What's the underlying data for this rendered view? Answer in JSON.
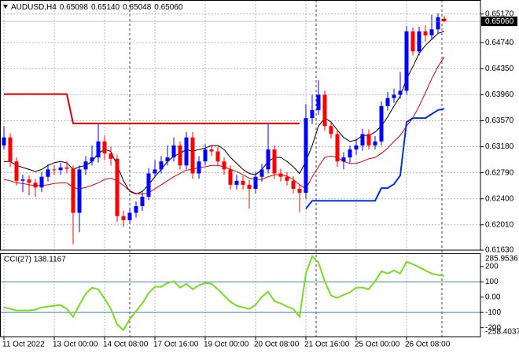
{
  "chart_data": [
    {
      "type": "candlestick",
      "title": "AUDUSD,H4",
      "header_values": [
        "0.65098",
        "0.65140",
        "0.65048",
        "0.65060"
      ],
      "categories": [
        "11 Oct 2022",
        null,
        null,
        null,
        null,
        null,
        null,
        null,
        "13 Oct 00:00",
        null,
        null,
        null,
        null,
        null,
        null,
        null,
        "14 Oct 08:00",
        null,
        null,
        null,
        null,
        null,
        null,
        null,
        "17 Oct 16:00",
        null,
        null,
        null,
        null,
        null,
        null,
        null,
        "19 Oct 00:00",
        null,
        null,
        null,
        null,
        null,
        null,
        null,
        "20 Oct 08:00",
        null,
        null,
        null,
        null,
        null,
        null,
        null,
        "21 Oct 16:00",
        null,
        null,
        null,
        null,
        null,
        null,
        null,
        "25 Oct 00:00",
        null,
        null,
        null,
        null,
        null,
        null,
        null,
        "26 Oct 08:00",
        null,
        null,
        null,
        null,
        null,
        null
      ],
      "open": [
        0.632,
        0.6332,
        0.6296,
        0.6267,
        0.6269,
        0.6264,
        0.6257,
        0.6273,
        0.6284,
        0.6283,
        0.6287,
        0.6285,
        0.6219,
        0.6284,
        0.6296,
        0.6302,
        0.6326,
        0.6308,
        0.63,
        0.6214,
        0.6208,
        0.6219,
        0.6229,
        0.6243,
        0.6278,
        0.6284,
        0.6296,
        0.6302,
        0.632,
        0.629,
        0.6332,
        0.6278,
        0.6296,
        0.6314,
        0.6311,
        0.6296,
        0.6284,
        0.6261,
        0.6267,
        0.6261,
        0.6255,
        0.6273,
        0.6284,
        0.6314,
        0.6278,
        0.6273,
        0.6267,
        0.6255,
        0.6249,
        0.6361,
        0.6373,
        0.6396,
        0.6349,
        0.6337,
        0.6296,
        0.6302,
        0.6314,
        0.632,
        0.6337,
        0.632,
        0.6326,
        0.6379,
        0.6391,
        0.6396,
        0.6402,
        0.6491,
        0.6461,
        0.6491,
        0.6485,
        0.6494,
        0.651
      ],
      "high": [
        0.6349,
        0.6338,
        0.6302,
        0.6276,
        0.6275,
        0.627,
        0.628,
        0.6292,
        0.629,
        0.6294,
        0.6296,
        0.629,
        0.629,
        0.6304,
        0.632,
        0.6352,
        0.6335,
        0.6318,
        0.6306,
        0.6222,
        0.6226,
        0.6236,
        0.625,
        0.6286,
        0.6298,
        0.6304,
        0.632,
        0.6332,
        0.6326,
        0.634,
        0.634,
        0.6304,
        0.6322,
        0.632,
        0.6318,
        0.6302,
        0.629,
        0.6276,
        0.6274,
        0.6268,
        0.628,
        0.6292,
        0.6352,
        0.632,
        0.6285,
        0.628,
        0.6274,
        0.6262,
        0.6382,
        0.6396,
        0.6418,
        0.6402,
        0.6356,
        0.6344,
        0.631,
        0.632,
        0.633,
        0.6345,
        0.6344,
        0.6334,
        0.6386,
        0.64,
        0.6405,
        0.643,
        0.6499,
        0.6497,
        0.6498,
        0.65,
        0.6516,
        0.6518,
        0.6514
      ],
      "low": [
        0.6314,
        0.6288,
        0.626,
        0.625,
        0.6245,
        0.6243,
        0.625,
        0.6266,
        0.6276,
        0.6276,
        0.6278,
        0.6172,
        0.619,
        0.6276,
        0.629,
        0.6294,
        0.6298,
        0.629,
        0.6205,
        0.6198,
        0.6202,
        0.6212,
        0.6222,
        0.6238,
        0.6272,
        0.6278,
        0.629,
        0.6296,
        0.6284,
        0.6284,
        0.627,
        0.627,
        0.629,
        0.6304,
        0.629,
        0.6276,
        0.6254,
        0.6254,
        0.6254,
        0.6225,
        0.6248,
        0.6266,
        0.6278,
        0.627,
        0.6266,
        0.626,
        0.6248,
        0.622,
        0.624,
        0.6352,
        0.6366,
        0.6342,
        0.633,
        0.6288,
        0.6284,
        0.6294,
        0.6306,
        0.6312,
        0.6314,
        0.6314,
        0.632,
        0.6372,
        0.6384,
        0.639,
        0.6396,
        0.6455,
        0.6455,
        0.6476,
        0.6478,
        0.6488,
        0.6505
      ],
      "close": [
        0.6332,
        0.6296,
        0.6267,
        0.6269,
        0.6264,
        0.6257,
        0.6273,
        0.6284,
        0.6283,
        0.6287,
        0.6285,
        0.6219,
        0.6284,
        0.6296,
        0.6302,
        0.6326,
        0.6308,
        0.63,
        0.6214,
        0.6208,
        0.6219,
        0.6229,
        0.6243,
        0.6278,
        0.6284,
        0.6296,
        0.6302,
        0.632,
        0.629,
        0.6332,
        0.6278,
        0.6296,
        0.6314,
        0.6311,
        0.6296,
        0.6284,
        0.6261,
        0.6267,
        0.6261,
        0.6255,
        0.6273,
        0.6284,
        0.6314,
        0.6278,
        0.6273,
        0.6267,
        0.6255,
        0.6249,
        0.6361,
        0.6373,
        0.6396,
        0.6349,
        0.6337,
        0.6296,
        0.6302,
        0.6314,
        0.632,
        0.6337,
        0.632,
        0.6326,
        0.6379,
        0.6391,
        0.6396,
        0.6402,
        0.6491,
        0.6461,
        0.6491,
        0.6485,
        0.6494,
        0.6512,
        0.6506
      ],
      "up_color": "#0000ff",
      "down_color": "#ff0000",
      "lines": [
        {
          "color": "#000000",
          "values": [
            0.6296,
            0.6296,
            0.629,
            0.6287,
            0.6284,
            0.6281,
            0.6284,
            0.629,
            0.6294,
            0.6296,
            0.6294,
            0.6284,
            0.6288,
            0.629,
            0.6296,
            0.6308,
            0.6314,
            0.6311,
            0.629,
            0.6267,
            0.6251,
            0.6247,
            0.6251,
            0.6261,
            0.6273,
            0.6284,
            0.6296,
            0.6304,
            0.6308,
            0.6314,
            0.6311,
            0.6314,
            0.6316,
            0.632,
            0.632,
            0.6314,
            0.6302,
            0.6293,
            0.6284,
            0.6278,
            0.6276,
            0.6284,
            0.6296,
            0.6302,
            0.6302,
            0.6296,
            0.6288,
            0.6278,
            0.6296,
            0.632,
            0.6349,
            0.6361,
            0.6355,
            0.6343,
            0.6332,
            0.6326,
            0.6328,
            0.6335,
            0.6335,
            0.634,
            0.6349,
            0.6363,
            0.6379,
            0.6394,
            0.642,
            0.6438,
            0.6458,
            0.647,
            0.6479,
            0.6488,
            0.6491
          ]
        },
        {
          "color": "#dd0000",
          "values": [
            0.6269,
            0.6267,
            0.6264,
            0.6263,
            0.6261,
            0.626,
            0.626,
            0.6261,
            0.6263,
            0.6264,
            0.6264,
            0.6257,
            0.6255,
            0.6257,
            0.626,
            0.6264,
            0.6269,
            0.6271,
            0.6267,
            0.626,
            0.6252,
            0.6248,
            0.6247,
            0.6249,
            0.6255,
            0.6261,
            0.6267,
            0.6273,
            0.6278,
            0.6283,
            0.6284,
            0.6287,
            0.6288,
            0.629,
            0.629,
            0.6288,
            0.6284,
            0.6281,
            0.6276,
            0.6271,
            0.6269,
            0.6269,
            0.6273,
            0.6276,
            0.6276,
            0.6274,
            0.6269,
            0.6261,
            0.6255,
            0.6273,
            0.6288,
            0.6302,
            0.6304,
            0.6302,
            0.6296,
            0.6293,
            0.6293,
            0.6296,
            0.63,
            0.6302,
            0.6308,
            0.6316,
            0.6326,
            0.6335,
            0.6349,
            0.6361,
            0.6379,
            0.6399,
            0.642,
            0.6438,
            0.6453
          ]
        },
        {
          "color": "#dd0000",
          "values": [
            0.6397,
            0.6397,
            0.6397,
            0.6397,
            0.6397,
            0.6397,
            0.6397,
            0.6397,
            0.6397,
            0.6397,
            0.6397,
            0.6353,
            0.6353,
            0.6353,
            0.6353,
            0.6353,
            0.6353,
            0.6353,
            0.6353,
            0.6353,
            0.6353,
            0.6353,
            0.6353,
            0.6353,
            0.6353,
            0.6353,
            0.6353,
            0.6353,
            0.6353,
            0.6353,
            0.6353,
            0.6353,
            0.6353,
            0.6353,
            0.6353,
            0.6353,
            0.6353,
            0.6353,
            0.6353,
            0.6353,
            0.6353,
            0.6353,
            0.6353,
            0.6353,
            0.6353,
            0.6353,
            0.6353,
            0.6353,
            null,
            null,
            null,
            null,
            null,
            null,
            null,
            null,
            null,
            null,
            null,
            null,
            null,
            null,
            null,
            null,
            null,
            null,
            null,
            null,
            null,
            null,
            null
          ]
        },
        {
          "color": "#0030e0",
          "values": [
            null,
            null,
            null,
            null,
            null,
            null,
            null,
            null,
            null,
            null,
            null,
            null,
            null,
            null,
            null,
            null,
            null,
            null,
            null,
            null,
            null,
            null,
            null,
            null,
            null,
            null,
            null,
            null,
            null,
            null,
            null,
            null,
            null,
            null,
            null,
            null,
            null,
            null,
            null,
            null,
            null,
            null,
            null,
            null,
            null,
            null,
            null,
            null,
            0.6225,
            0.6237,
            0.6237,
            0.6237,
            0.6237,
            0.6237,
            0.6237,
            0.6237,
            0.6237,
            0.6237,
            0.6237,
            0.6237,
            0.6256,
            0.6256,
            0.6262,
            0.6275,
            0.6355,
            0.6361,
            0.6361,
            0.6361,
            0.6367,
            0.6373,
            0.6375
          ]
        }
      ],
      "current_price": {
        "value": 0.6506,
        "label": "0.65060"
      },
      "ylim": [
        0.6163,
        0.6538
      ],
      "yticks": [
        {
          "value": 0.6517,
          "label": "0.65170"
        },
        {
          "value": 0.6474,
          "label": "0.64740"
        },
        {
          "value": 0.6435,
          "label": "0.64350"
        },
        {
          "value": 0.6396,
          "label": "0.63960"
        },
        {
          "value": 0.6357,
          "label": "0.63570"
        },
        {
          "value": 0.6318,
          "label": "0.63180"
        },
        {
          "value": 0.6279,
          "label": "0.62790"
        },
        {
          "value": 0.624,
          "label": "0.62400"
        },
        {
          "value": 0.6201,
          "label": "0.62010"
        },
        {
          "value": 0.6163,
          "label": "0.61630"
        }
      ],
      "grid": true
    },
    {
      "type": "line",
      "title": "CCI(27) 138.1167",
      "color": "#77dd22",
      "values": [
        -67,
        -77,
        -87,
        -87,
        -87,
        -82,
        -67,
        -62,
        -56,
        -51,
        -77,
        -128,
        -51,
        21,
        62,
        51,
        -10,
        -77,
        -179,
        -215,
        -144,
        -92,
        -41,
        26,
        67,
        67,
        92,
        103,
        62,
        87,
        51,
        77,
        92,
        87,
        51,
        10,
        -31,
        -56,
        -67,
        -77,
        -51,
        2,
        36,
        -26,
        -41,
        -62,
        -77,
        -128,
        154,
        267,
        226,
        103,
        10,
        -5,
        15,
        31,
        62,
        62,
        51,
        103,
        169,
        154,
        174,
        154,
        231,
        215,
        195,
        174,
        154,
        144,
        138.1167
      ],
      "ylim": [
        -258.4037,
        285.9536
      ],
      "yticks": [
        200,
        100,
        {
          "value": 0,
          "label": "0.00"
        },
        -100,
        -200
      ],
      "levels": [
        100,
        -100
      ],
      "level_color": "#4682b4"
    }
  ]
}
